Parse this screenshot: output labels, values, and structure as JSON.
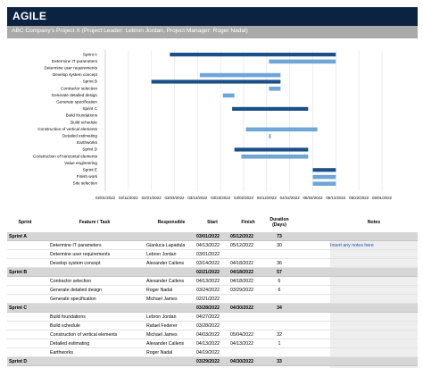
{
  "header": {
    "title": "AGILE",
    "subtitle": "ABC Company's Project X (Project Leader: Lebron Jordan, Project Manager: Roger Nadal)"
  },
  "colors": {
    "header_bg": "#0b2340",
    "subheader_bg": "#a9a9a9",
    "sprint_bar": "#1b4f8a",
    "task_bar": "#6fa6d8",
    "sprint_row_bg": "#d6d6d6",
    "notes_bg": "#eeeeee",
    "link_text": "#1f4fbf"
  },
  "chart_data": {
    "type": "gantt",
    "x_ticks": [
      "02/01/2022",
      "02/11/2022",
      "02/21/2022",
      "03/03/2022",
      "03/13/2022",
      "03/23/2022",
      "04/02/2022",
      "04/12/2022",
      "04/22/2022",
      "05/02/2022",
      "05/12/2022",
      "05/22/2022",
      "06/01/2022"
    ],
    "x_range": [
      "02/01/2022",
      "06/01/2022"
    ],
    "grid": true,
    "rows": [
      {
        "label": "Sprint A",
        "kind": "sprint",
        "start": "03/01/2022",
        "end": "05/12/2022"
      },
      {
        "label": "Determine IT parameters",
        "kind": "task",
        "start": "04/13/2022",
        "end": "05/12/2022"
      },
      {
        "label": "Determine user requirements",
        "kind": "task",
        "start": null,
        "end": null
      },
      {
        "label": "Develop system concept",
        "kind": "task",
        "start": "03/14/2022",
        "end": "04/18/2022"
      },
      {
        "label": "Sprint B",
        "kind": "sprint",
        "start": "02/21/2022",
        "end": "04/18/2022"
      },
      {
        "label": "Contractor selection",
        "kind": "task",
        "start": "04/13/2022",
        "end": "04/18/2022"
      },
      {
        "label": "Generate detailed design",
        "kind": "task",
        "start": "03/24/2022",
        "end": "03/29/2022"
      },
      {
        "label": "Generate specification",
        "kind": "task",
        "start": null,
        "end": null
      },
      {
        "label": "Sprint C",
        "kind": "sprint",
        "start": "03/28/2022",
        "end": "04/30/2022"
      },
      {
        "label": "Build foundations",
        "kind": "task",
        "start": null,
        "end": null
      },
      {
        "label": "Build schedule",
        "kind": "task",
        "start": null,
        "end": null
      },
      {
        "label": "Construction of vertical elements",
        "kind": "task",
        "start": "04/03/2022",
        "end": "05/04/2022"
      },
      {
        "label": "Detailed estimating",
        "kind": "task",
        "start": "04/13/2022",
        "end": "04/13/2022"
      },
      {
        "label": "Earthworks",
        "kind": "task",
        "start": null,
        "end": null
      },
      {
        "label": "Sprint D",
        "kind": "sprint",
        "start": "03/29/2022",
        "end": "04/30/2022"
      },
      {
        "label": "Construction of horizontal elements",
        "kind": "task",
        "start": "04/01/2022",
        "end": "04/30/2022"
      },
      {
        "label": "Value engineering",
        "kind": "task",
        "start": null,
        "end": null
      },
      {
        "label": "Sprint E",
        "kind": "sprint",
        "start": "05/02/2022",
        "end": "05/12/2022"
      },
      {
        "label": "Finish work",
        "kind": "task",
        "start": "05/02/2022",
        "end": "05/12/2022"
      },
      {
        "label": "Site selection",
        "kind": "task",
        "start": "05/02/2022",
        "end": "05/12/2022"
      }
    ]
  },
  "table": {
    "headers": {
      "sprint": "Sprint",
      "feature": "Feature / Task",
      "responsible": "Responsible",
      "start": "Start",
      "finish": "Finish",
      "duration": "Duration (Days)",
      "notes": "Notes"
    },
    "rows": [
      {
        "type": "sprint",
        "sprint": "Sprint A",
        "feature": "",
        "responsible": "",
        "start": "03/01/2022",
        "finish": "05/12/2022",
        "duration": "73",
        "notes": ""
      },
      {
        "type": "task",
        "sprint": "",
        "feature": "Determine IT parameters",
        "responsible": "Gianluca Lapadula",
        "start": "04/13/2022",
        "finish": "05/12/2022",
        "duration": "30",
        "notes": "Insert any notes here"
      },
      {
        "type": "task",
        "sprint": "",
        "feature": "Determine user requirements",
        "responsible": "Lebron Jordan",
        "start": "03/01/2022",
        "finish": "",
        "duration": "",
        "notes": ""
      },
      {
        "type": "task",
        "sprint": "",
        "feature": "Develop system concept",
        "responsible": "Alexander Callens",
        "start": "03/14/2022",
        "finish": "04/18/2022",
        "duration": "36",
        "notes": ""
      },
      {
        "type": "sprint",
        "sprint": "Sprint B",
        "feature": "",
        "responsible": "",
        "start": "02/21/2022",
        "finish": "04/18/2022",
        "duration": "57",
        "notes": ""
      },
      {
        "type": "task",
        "sprint": "",
        "feature": "Contractor selection",
        "responsible": "Alexander Callens",
        "start": "04/13/2022",
        "finish": "04/18/2022",
        "duration": "6",
        "notes": ""
      },
      {
        "type": "task",
        "sprint": "",
        "feature": "Generate detailed design",
        "responsible": "Roger Nadal",
        "start": "03/24/2022",
        "finish": "03/29/2022",
        "duration": "6",
        "notes": ""
      },
      {
        "type": "task",
        "sprint": "",
        "feature": "Generate specification",
        "responsible": "Michael James",
        "start": "02/21/2022",
        "finish": "",
        "duration": "",
        "notes": ""
      },
      {
        "type": "sprint",
        "sprint": "Sprint C",
        "feature": "",
        "responsible": "",
        "start": "03/28/2022",
        "finish": "04/30/2022",
        "duration": "34",
        "notes": ""
      },
      {
        "type": "task",
        "sprint": "",
        "feature": "Build foundations",
        "responsible": "Lebron Jordan",
        "start": "04/27/2022",
        "finish": "",
        "duration": "",
        "notes": ""
      },
      {
        "type": "task",
        "sprint": "",
        "feature": "Build schedule",
        "responsible": "Rafael Federer",
        "start": "03/28/2022",
        "finish": "",
        "duration": "",
        "notes": ""
      },
      {
        "type": "task",
        "sprint": "",
        "feature": "Construction of vertical elements",
        "responsible": "Michael James",
        "start": "04/03/2022",
        "finish": "05/04/2022",
        "duration": "32",
        "notes": ""
      },
      {
        "type": "task",
        "sprint": "",
        "feature": "Detailed estimating",
        "responsible": "Alexander Callens",
        "start": "04/13/2022",
        "finish": "04/13/2022",
        "duration": "1",
        "notes": ""
      },
      {
        "type": "task",
        "sprint": "",
        "feature": "Earthworks",
        "responsible": "Roger Nadal",
        "start": "04/19/2022",
        "finish": "",
        "duration": "",
        "notes": ""
      },
      {
        "type": "sprint",
        "sprint": "Sprint D",
        "feature": "",
        "responsible": "",
        "start": "03/29/2022",
        "finish": "04/30/2022",
        "duration": "33",
        "notes": ""
      }
    ]
  }
}
